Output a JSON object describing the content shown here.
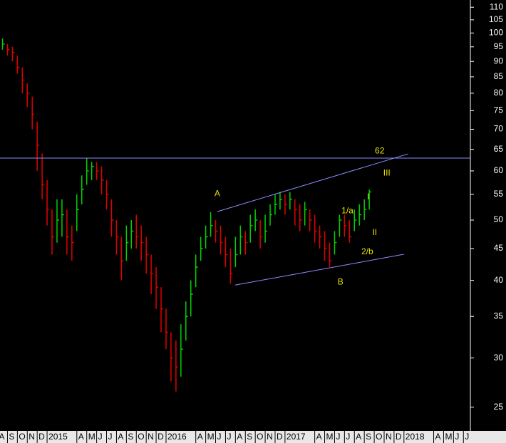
{
  "chart_data": {
    "type": "ohlc",
    "log_y": true,
    "up_color": "#00d000",
    "down_color": "#e00000",
    "line_color": "#8c8cff",
    "annotation_color": "#e8e000",
    "xlim": [
      0.25,
      47.7
    ],
    "ylim": [
      22.9,
      113
    ],
    "yticks": [
      25,
      30,
      35,
      40,
      45,
      50,
      55,
      60,
      65,
      70,
      75,
      80,
      85,
      90,
      95,
      100,
      105,
      110
    ],
    "xticks": [
      {
        "value": 0,
        "label": "A"
      },
      {
        "value": 1,
        "label": "S"
      },
      {
        "value": 2,
        "label": "O"
      },
      {
        "value": 3,
        "label": "N"
      },
      {
        "value": 4,
        "label": "D"
      },
      {
        "value": 5,
        "label": "2015"
      },
      {
        "value": 8,
        "label": "A"
      },
      {
        "value": 9,
        "label": "M"
      },
      {
        "value": 10,
        "label": "J"
      },
      {
        "value": 11,
        "label": "J"
      },
      {
        "value": 12,
        "label": "A"
      },
      {
        "value": 13,
        "label": "S"
      },
      {
        "value": 14,
        "label": "O"
      },
      {
        "value": 15,
        "label": "N"
      },
      {
        "value": 16,
        "label": "D"
      },
      {
        "value": 17,
        "label": "2016"
      },
      {
        "value": 20,
        "label": "A"
      },
      {
        "value": 21,
        "label": "M"
      },
      {
        "value": 22,
        "label": "J"
      },
      {
        "value": 23,
        "label": "J"
      },
      {
        "value": 24,
        "label": "A"
      },
      {
        "value": 25,
        "label": "S"
      },
      {
        "value": 26,
        "label": "O"
      },
      {
        "value": 27,
        "label": "N"
      },
      {
        "value": 28,
        "label": "D"
      },
      {
        "value": 29,
        "label": "2017"
      },
      {
        "value": 32,
        "label": "A"
      },
      {
        "value": 33,
        "label": "M"
      },
      {
        "value": 34,
        "label": "J"
      },
      {
        "value": 35,
        "label": "J"
      },
      {
        "value": 36,
        "label": "A"
      },
      {
        "value": 37,
        "label": "S"
      },
      {
        "value": 38,
        "label": "O"
      },
      {
        "value": 39,
        "label": "N"
      },
      {
        "value": 40,
        "label": "D"
      },
      {
        "value": 41,
        "label": "2018"
      },
      {
        "value": 44,
        "label": "A"
      },
      {
        "value": 45,
        "label": "M"
      },
      {
        "value": 46,
        "label": "J"
      },
      {
        "value": 47,
        "label": "J"
      }
    ],
    "x": [
      0.5,
      1,
      1.5,
      2,
      2.5,
      3,
      3.5,
      4,
      4.5,
      5,
      5.5,
      6,
      6.5,
      7,
      7.5,
      8,
      8.5,
      9,
      9.5,
      10,
      10.5,
      11,
      11.5,
      12,
      12.5,
      13,
      13.5,
      14,
      14.5,
      15,
      15.5,
      16,
      16.5,
      17,
      17.5,
      18,
      18.5,
      19,
      19.5,
      20,
      20.5,
      21,
      21.5,
      22,
      22.5,
      23,
      23.5,
      24,
      24.5,
      25,
      25.5,
      26,
      26.5,
      27,
      27.5,
      28,
      28.5,
      29,
      29.5,
      30,
      30.5,
      31,
      31.5,
      32,
      32.5,
      33,
      33.5,
      34,
      34.5,
      35,
      35.5,
      36,
      36.5,
      37,
      37.5
    ],
    "high": [
      98,
      96,
      95,
      92,
      88,
      83,
      79,
      72,
      64,
      58,
      52,
      54,
      54,
      52,
      49,
      55,
      59,
      63,
      62,
      62,
      61,
      58,
      54,
      50,
      47,
      49,
      50,
      51,
      49,
      47,
      44,
      42,
      39,
      36,
      33,
      32,
      34,
      37,
      40,
      44,
      47,
      49,
      51.5,
      50,
      49,
      47,
      45,
      47,
      49,
      48,
      51,
      52,
      50,
      51,
      53,
      55,
      55.5,
      55,
      55.5,
      54,
      53,
      53.5,
      52,
      51,
      49,
      48,
      46,
      48,
      51,
      51,
      50,
      52,
      53,
      54,
      56
    ],
    "low": [
      94,
      92,
      90,
      86,
      80,
      76,
      70,
      60,
      54,
      49,
      44,
      46,
      47,
      44,
      43,
      48,
      53,
      57,
      58,
      58,
      55,
      52,
      47,
      44,
      40,
      43,
      45,
      45,
      43,
      41,
      38,
      36,
      33,
      31,
      27.5,
      26.5,
      28,
      32,
      35,
      39,
      43,
      45,
      47,
      46,
      44,
      42,
      39.5,
      42,
      44,
      44,
      46,
      48,
      45,
      46,
      49,
      51,
      52,
      51,
      52,
      49,
      48,
      49,
      48,
      46,
      45,
      43,
      42,
      44,
      47,
      47,
      46,
      48,
      49,
      50,
      52
    ],
    "close": [
      96,
      94,
      93,
      88,
      84,
      80,
      74,
      66,
      57,
      52,
      47,
      50,
      51,
      47,
      46,
      52,
      56,
      60,
      61,
      60,
      58,
      55,
      50,
      47,
      43,
      46,
      48,
      47,
      46,
      44,
      41,
      39,
      36,
      33,
      30,
      29,
      31,
      35,
      38,
      42,
      45,
      47,
      49,
      48,
      46,
      44,
      41,
      44,
      47,
      46,
      49,
      50,
      47,
      48,
      51,
      53,
      54,
      53,
      54,
      52,
      50,
      52,
      50,
      48,
      47,
      45,
      43,
      46,
      50,
      49,
      47,
      50,
      51,
      52,
      55.5
    ],
    "hline": 62.9,
    "trendlines": [
      {
        "x": [
          22.17,
          41.42
        ],
        "y": [
          51.6,
          63.9
        ]
      },
      {
        "x": [
          23.97,
          40.99
        ],
        "y": [
          39.3,
          44.05
        ]
      }
    ],
    "annotations": [
      {
        "text": "A",
        "x": 22.17,
        "y": 55.1
      },
      {
        "text": "B",
        "x": 34.6,
        "y": 39.7
      },
      {
        "text": "62",
        "x": 38.55,
        "y": 64.5
      },
      {
        "text": "III",
        "x": 39.27,
        "y": 59.5
      },
      {
        "text": "I",
        "x": 37.4,
        "y": 54.4
      },
      {
        "text": "1/a",
        "x": 35.3,
        "y": 51.7
      },
      {
        "text": "II",
        "x": 38.05,
        "y": 47.7
      },
      {
        "text": "2/b",
        "x": 37.3,
        "y": 44.4
      }
    ]
  }
}
